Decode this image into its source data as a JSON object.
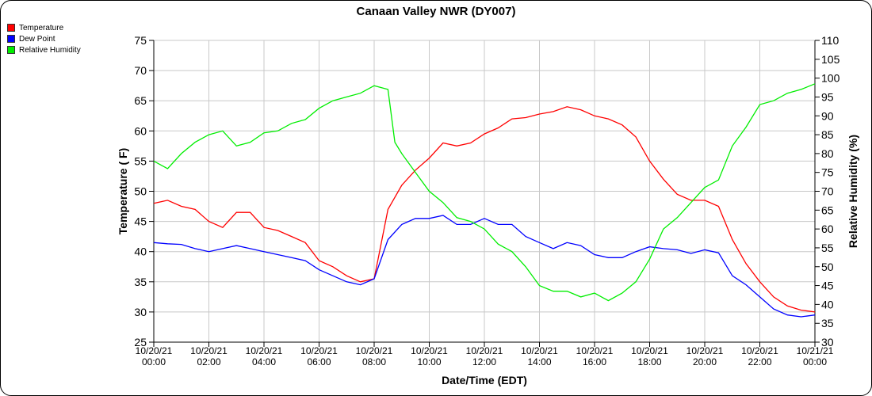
{
  "chart_data": {
    "type": "line",
    "title": "Canaan Valley NWR (DY007)",
    "xlabel": "Date/Time (EDT)",
    "ylabel": "Temperature ( F)",
    "y2label": "Relative Humidity (%)",
    "ylim": [
      25,
      75
    ],
    "y2lim": [
      30,
      110
    ],
    "yticks": [
      25,
      30,
      35,
      40,
      45,
      50,
      55,
      60,
      65,
      70,
      75
    ],
    "y2ticks": [
      30,
      35,
      40,
      45,
      50,
      55,
      60,
      65,
      70,
      75,
      80,
      85,
      90,
      95,
      100,
      105,
      110
    ],
    "xlim_hours": [
      0,
      24
    ],
    "xticks": [
      {
        "h": 0,
        "date": "10/20/21",
        "time": "00:00"
      },
      {
        "h": 2,
        "date": "10/20/21",
        "time": "02:00"
      },
      {
        "h": 4,
        "date": "10/20/21",
        "time": "04:00"
      },
      {
        "h": 6,
        "date": "10/20/21",
        "time": "06:00"
      },
      {
        "h": 8,
        "date": "10/20/21",
        "time": "08:00"
      },
      {
        "h": 10,
        "date": "10/20/21",
        "time": "10:00"
      },
      {
        "h": 12,
        "date": "10/20/21",
        "time": "12:00"
      },
      {
        "h": 14,
        "date": "10/20/21",
        "time": "14:00"
      },
      {
        "h": 16,
        "date": "10/20/21",
        "time": "16:00"
      },
      {
        "h": 18,
        "date": "10/20/21",
        "time": "18:00"
      },
      {
        "h": 20,
        "date": "10/20/21",
        "time": "20:00"
      },
      {
        "h": 22,
        "date": "10/20/21",
        "time": "22:00"
      },
      {
        "h": 24,
        "date": "10/21/21",
        "time": "00:00"
      }
    ],
    "grid": true,
    "legend_position": "top-left",
    "series": [
      {
        "name": "Temperature",
        "color": "#ff0000",
        "axis": "left",
        "x": [
          0,
          0.5,
          1,
          1.5,
          2,
          2.5,
          3,
          3.5,
          4,
          4.5,
          5,
          5.5,
          6,
          6.5,
          7,
          7.5,
          8,
          8.5,
          9,
          9.5,
          10,
          10.5,
          11,
          11.5,
          12,
          12.5,
          13,
          13.5,
          14,
          14.5,
          15,
          15.5,
          16,
          16.5,
          17,
          17.5,
          18,
          18.5,
          19,
          19.5,
          20,
          20.5,
          21,
          21.5,
          22,
          22.5,
          23,
          23.5,
          24
        ],
        "values": [
          48,
          48.5,
          47.5,
          47,
          45,
          44,
          46.5,
          46.5,
          44,
          43.5,
          42.5,
          41.5,
          38.5,
          37.5,
          36,
          35,
          35.5,
          47,
          51,
          53.5,
          55.5,
          58,
          57.5,
          58,
          59.5,
          60.5,
          62,
          62.2,
          62.8,
          63.2,
          64,
          63.5,
          62.5,
          62,
          61,
          59,
          55,
          52,
          49.5,
          48.5,
          48.5,
          47.5,
          42,
          38,
          35,
          32.5,
          31,
          30.3,
          30
        ]
      },
      {
        "name": "Dew Point",
        "color": "#0000ff",
        "axis": "left",
        "x": [
          0,
          0.5,
          1,
          1.5,
          2,
          2.5,
          3,
          3.5,
          4,
          4.5,
          5,
          5.5,
          6,
          6.5,
          7,
          7.5,
          8,
          8.5,
          9,
          9.5,
          10,
          10.5,
          11,
          11.5,
          12,
          12.5,
          13,
          13.5,
          14,
          14.5,
          15,
          15.5,
          16,
          16.5,
          17,
          17.5,
          18,
          18.5,
          19,
          19.5,
          20,
          20.5,
          21,
          21.5,
          22,
          22.5,
          23,
          23.5,
          24
        ],
        "values": [
          41.5,
          41.3,
          41.2,
          40.5,
          40,
          40.5,
          41,
          40.5,
          40,
          39.5,
          39,
          38.5,
          37,
          36,
          35,
          34.5,
          35.5,
          42,
          44.5,
          45.5,
          45.5,
          46,
          44.5,
          44.5,
          45.5,
          44.5,
          44.5,
          42.5,
          41.5,
          40.5,
          41.5,
          41,
          39.5,
          39,
          39,
          40,
          40.8,
          40.5,
          40.3,
          39.7,
          40.3,
          39.8,
          36,
          34.5,
          32.5,
          30.5,
          29.5,
          29.2,
          29.5
        ]
      },
      {
        "name": "Relative Humidity",
        "color": "#00ee00",
        "axis": "right",
        "x": [
          0,
          0.5,
          1,
          1.5,
          2,
          2.5,
          3,
          3.5,
          4,
          4.5,
          5,
          5.5,
          6,
          6.5,
          7,
          7.5,
          8,
          8.5,
          8.75,
          9,
          9.5,
          10,
          10.5,
          11,
          11.5,
          12,
          12.5,
          13,
          13.5,
          14,
          14.5,
          15,
          15.5,
          16,
          16.5,
          17,
          17.5,
          18,
          18.5,
          19,
          19.5,
          20,
          20.5,
          21,
          21.5,
          22,
          22.5,
          23,
          23.5,
          24
        ],
        "values": [
          78,
          76,
          80,
          83,
          85,
          86,
          82,
          83,
          85.5,
          86,
          88,
          89,
          92,
          94,
          95,
          96,
          98,
          97,
          83,
          80,
          75,
          70,
          67,
          63,
          62,
          60,
          56,
          54,
          50,
          45,
          43.5,
          43.5,
          42,
          43,
          41,
          43,
          46,
          52,
          60,
          63,
          67,
          71,
          73,
          82,
          87,
          93,
          94,
          96,
          97,
          98.5
        ]
      }
    ]
  }
}
